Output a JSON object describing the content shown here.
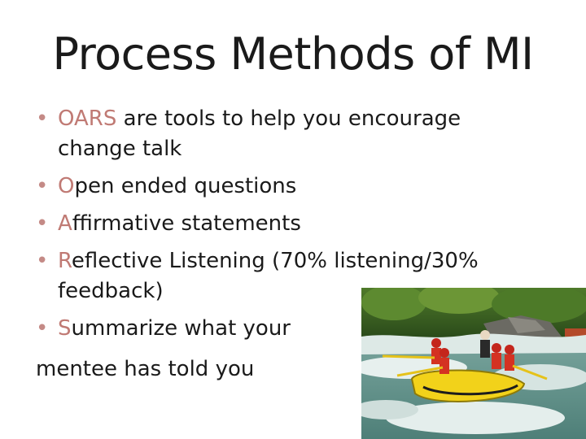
{
  "slide": {
    "title": "Process Methods of MI",
    "bullets": [
      {
        "accent": "OARS",
        "rest": " are tools to help you encourage change talk"
      },
      {
        "accent": "O",
        "rest": "pen ended questions"
      },
      {
        "accent": "A",
        "rest": "ffirmative statements"
      },
      {
        "accent": "R",
        "rest": "eflective Listening (70% listening/30% feedback)"
      },
      {
        "accent": "S",
        "rest": "ummarize what your"
      }
    ],
    "continuation": "mentee has told you",
    "bullet_glyph": "•",
    "accent_color": "#c07a74",
    "photo_icon": "whitewater-rafting-photo"
  }
}
